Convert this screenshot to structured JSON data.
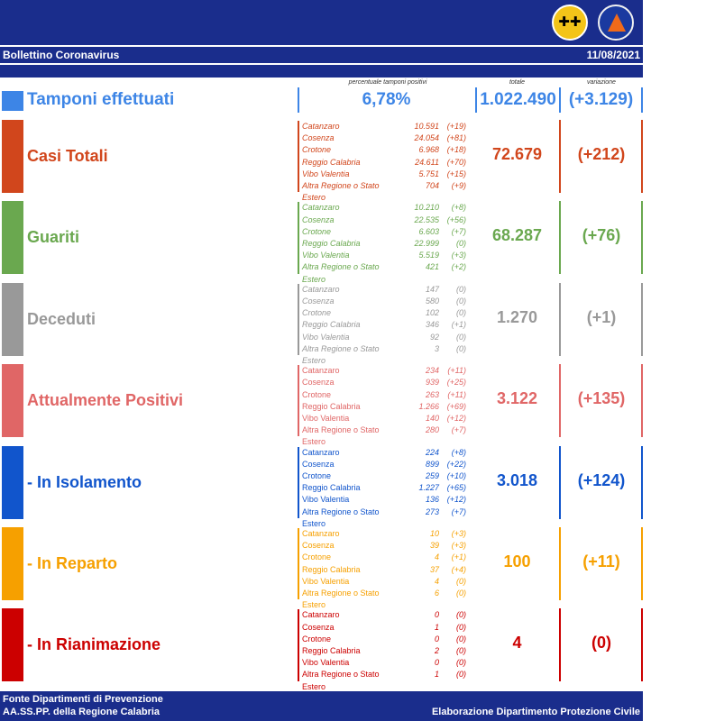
{
  "header": {
    "title": "Bollettino Coronavirus",
    "date": "11/08/2021",
    "logos": [
      "regione-calabria-logo",
      "protezione-civile-logo"
    ]
  },
  "tamponi": {
    "label": "Tamponi effettuati",
    "caption_perc": "percentuale tamponi positivi",
    "caption_tot": "totale",
    "caption_var": "variazione",
    "perc": "6,78%",
    "totale": "1.022.490",
    "variazione": "(+3.129)",
    "color": "#3d85e6"
  },
  "sections": [
    {
      "label": "Casi Totali",
      "color": "#d1461c",
      "italic": true,
      "totale": "72.679",
      "variazione": "(+212)",
      "rows": [
        [
          "Catanzaro",
          "10.591",
          "(+19)"
        ],
        [
          "Cosenza",
          "24.054",
          "(+81)"
        ],
        [
          "Crotone",
          "6.968",
          "(+18)"
        ],
        [
          "Reggio Calabria",
          "24.611",
          "(+70)"
        ],
        [
          "Vibo Valentia",
          "5.751",
          "(+15)"
        ],
        [
          "Altra Regione o Stato Estero",
          "704",
          "(+9)"
        ]
      ]
    },
    {
      "label": "Guariti",
      "color": "#6aa84f",
      "italic": true,
      "totale": "68.287",
      "variazione": "(+76)",
      "rows": [
        [
          "Catanzaro",
          "10.210",
          "(+8)"
        ],
        [
          "Cosenza",
          "22.535",
          "(+56)"
        ],
        [
          "Crotone",
          "6.603",
          "(+7)"
        ],
        [
          "Reggio Calabria",
          "22.999",
          "(0)"
        ],
        [
          "Vibo Valentia",
          "5.519",
          "(+3)"
        ],
        [
          "Altra Regione o Stato Estero",
          "421",
          "(+2)"
        ]
      ]
    },
    {
      "label": "Deceduti",
      "color": "#999999",
      "italic": true,
      "totale": "1.270",
      "variazione": "(+1)",
      "rows": [
        [
          "Catanzaro",
          "147",
          "(0)"
        ],
        [
          "Cosenza",
          "580",
          "(0)"
        ],
        [
          "Crotone",
          "102",
          "(0)"
        ],
        [
          "Reggio Calabria",
          "346",
          "(+1)"
        ],
        [
          "Vibo Valentia",
          "92",
          "(0)"
        ],
        [
          "Altra Regione o Stato Estero",
          "3",
          "(0)"
        ]
      ]
    },
    {
      "label": "Attualmente Positivi",
      "color": "#e06666",
      "italic": false,
      "totale": "3.122",
      "variazione": "(+135)",
      "rows": [
        [
          "Catanzaro",
          "234",
          "(+11)"
        ],
        [
          "Cosenza",
          "939",
          "(+25)"
        ],
        [
          "Crotone",
          "263",
          "(+11)"
        ],
        [
          "Reggio Calabria",
          "1.266",
          "(+69)"
        ],
        [
          "Vibo Valentia",
          "140",
          "(+12)"
        ],
        [
          "Altra Regione o Stato Estero",
          "280",
          "(+7)"
        ]
      ]
    },
    {
      "label": " - In Isolamento",
      "color": "#1155cc",
      "italic": false,
      "totale": "3.018",
      "variazione": "(+124)",
      "rows": [
        [
          "Catanzaro",
          "224",
          "(+8)"
        ],
        [
          "Cosenza",
          "899",
          "(+22)"
        ],
        [
          "Crotone",
          "259",
          "(+10)"
        ],
        [
          "Reggio Calabria",
          "1.227",
          "(+65)"
        ],
        [
          "Vibo Valentia",
          "136",
          "(+12)"
        ],
        [
          "Altra Regione o Stato Estero",
          "273",
          "(+7)"
        ]
      ]
    },
    {
      "label": " - In Reparto",
      "color": "#f6a000",
      "italic": false,
      "totale": "100",
      "variazione": "(+11)",
      "rows": [
        [
          "Catanzaro",
          "10",
          "(+3)"
        ],
        [
          "Cosenza",
          "39",
          "(+3)"
        ],
        [
          "Crotone",
          "4",
          "(+1)"
        ],
        [
          "Reggio Calabria",
          "37",
          "(+4)"
        ],
        [
          "Vibo Valentia",
          "4",
          "(0)"
        ],
        [
          "Altra Regione o Stato Estero",
          "6",
          "(0)"
        ]
      ]
    },
    {
      "label": " - In Rianimazione",
      "color": "#cc0000",
      "italic": false,
      "totale": "4",
      "variazione": "(0)",
      "rows": [
        [
          "Catanzaro",
          "0",
          "(0)"
        ],
        [
          "Cosenza",
          "1",
          "(0)"
        ],
        [
          "Crotone",
          "0",
          "(0)"
        ],
        [
          "Reggio Calabria",
          "2",
          "(0)"
        ],
        [
          "Vibo Valentia",
          "0",
          "(0)"
        ],
        [
          "Altra Regione o Stato Estero",
          "1",
          "(0)"
        ]
      ]
    }
  ],
  "footer": {
    "line1": "Fonte Dipartimenti di Prevenzione",
    "line2": "AA.SS.PP.  della Regione Calabria",
    "right": "Elaborazione Dipartimento Protezione Civile"
  }
}
